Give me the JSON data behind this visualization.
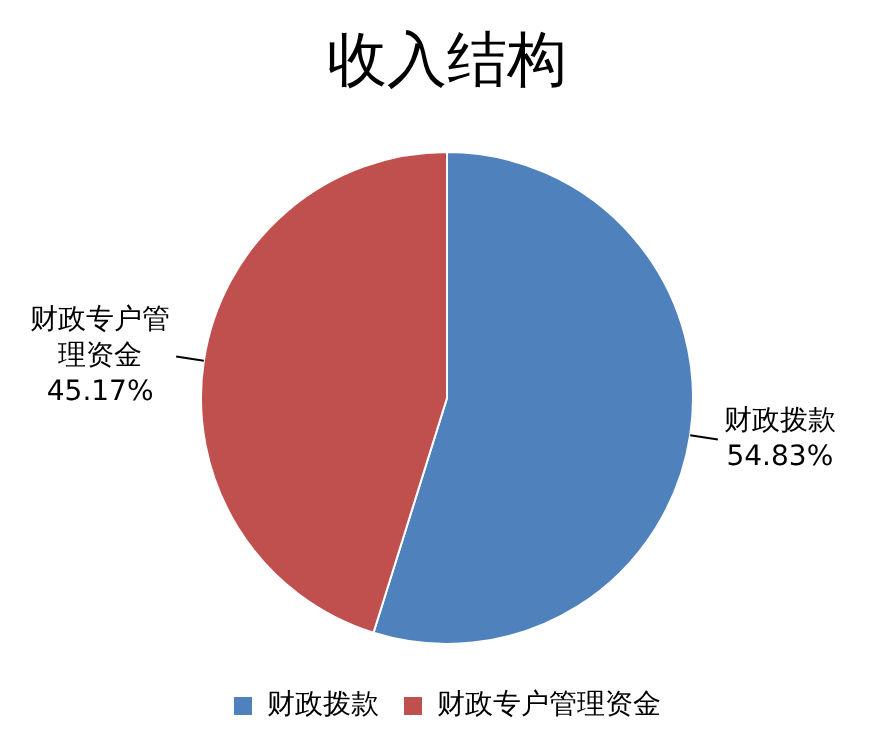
{
  "chart_data": {
    "type": "pie",
    "title": "收入结构",
    "categories": [
      "财政拨款",
      "财政专户管理资金"
    ],
    "values": [
      54.83,
      45.17
    ],
    "colors": [
      "#4f81bd",
      "#c0504d"
    ],
    "value_labels": [
      "54.83%",
      "45.17%"
    ],
    "legend": "bottom"
  }
}
